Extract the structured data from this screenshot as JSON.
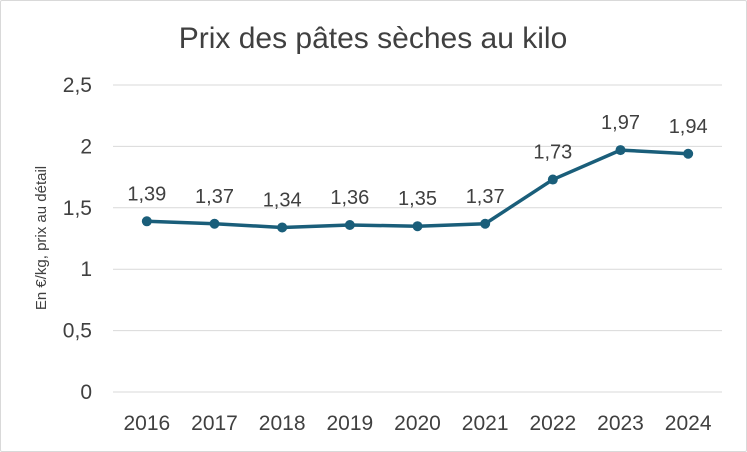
{
  "chart_data": {
    "type": "line",
    "title": "Prix des pâtes sèches au kilo",
    "ylabel": "En €/kg, prix au détail",
    "xlabel": "",
    "categories": [
      "2016",
      "2017",
      "2018",
      "2019",
      "2020",
      "2021",
      "2022",
      "2023",
      "2024"
    ],
    "series": [
      {
        "values": [
          1.39,
          1.37,
          1.34,
          1.36,
          1.35,
          1.37,
          1.73,
          1.97,
          1.94
        ],
        "labels": [
          "1,39",
          "1,37",
          "1,34",
          "1,36",
          "1,35",
          "1,37",
          "1,73",
          "1,97",
          "1,94"
        ]
      }
    ],
    "ylim": [
      0,
      2.5
    ],
    "yticks": [
      0,
      0.5,
      1,
      1.5,
      2,
      2.5
    ],
    "ytick_labels": [
      "0",
      "0,5",
      "1",
      "1,5",
      "2",
      "2,5"
    ],
    "grid": true,
    "legend": "none",
    "color": "#1a5e7a"
  }
}
